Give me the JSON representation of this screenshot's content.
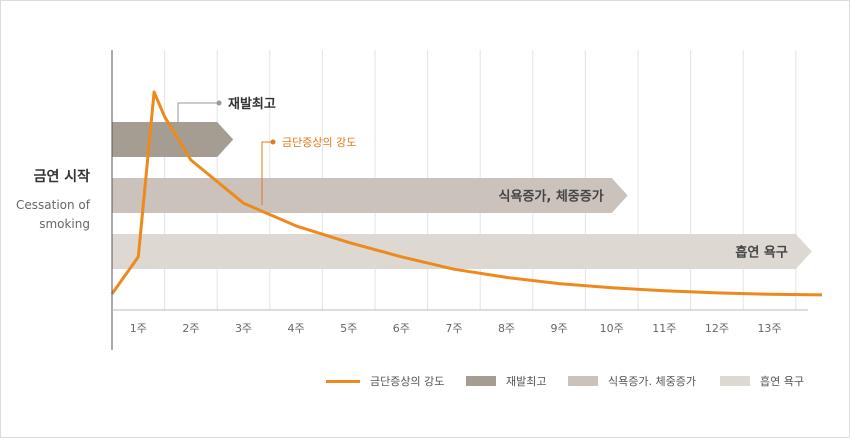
{
  "chart_data": {
    "type": "line",
    "y_label": {
      "title": "금연 시작",
      "subtitle": "Cessation of smoking"
    },
    "categories": [
      "1주",
      "2주",
      "3주",
      "4주",
      "5주",
      "6주",
      "7주",
      "8주",
      "9주",
      "10주",
      "11주",
      "12주",
      "13주"
    ],
    "bars": [
      {
        "name": "재발최고",
        "label": "재발최고",
        "end_week": 2,
        "color": "#a59d92"
      },
      {
        "name": "식욕증가, 체중증가",
        "label": "식욕증가, 체중증가",
        "end_week": 9.5,
        "color": "#cbc3bb"
      },
      {
        "name": "흡연 욕구",
        "label": "흡연 욕구",
        "end_week": 13,
        "color": "#ddd8d2"
      }
    ],
    "series": [
      {
        "name": "금단증상의 강도",
        "color": "#ec8a1d",
        "points": [
          [
            -0.5,
            0.02
          ],
          [
            0,
            0.2
          ],
          [
            0.3,
            1.0
          ],
          [
            0.5,
            0.88
          ],
          [
            1,
            0.67
          ],
          [
            2,
            0.46
          ],
          [
            3,
            0.35
          ],
          [
            4,
            0.27
          ],
          [
            5,
            0.2
          ],
          [
            6,
            0.14
          ],
          [
            7,
            0.1
          ],
          [
            8,
            0.07
          ],
          [
            9,
            0.05
          ],
          [
            10,
            0.035
          ],
          [
            11,
            0.025
          ],
          [
            12,
            0.018
          ],
          [
            13,
            0.015
          ]
        ]
      }
    ],
    "annotations": [
      {
        "text": "재발최고",
        "color": "#333333"
      },
      {
        "text": "금단증상의 강도",
        "color": "#e07a1a"
      }
    ],
    "legend": {
      "position": "bottom-right",
      "entries": [
        "금단증상의 강도",
        "재발최고",
        "식욕증가. 체중증가",
        "흡연 욕구"
      ]
    }
  }
}
